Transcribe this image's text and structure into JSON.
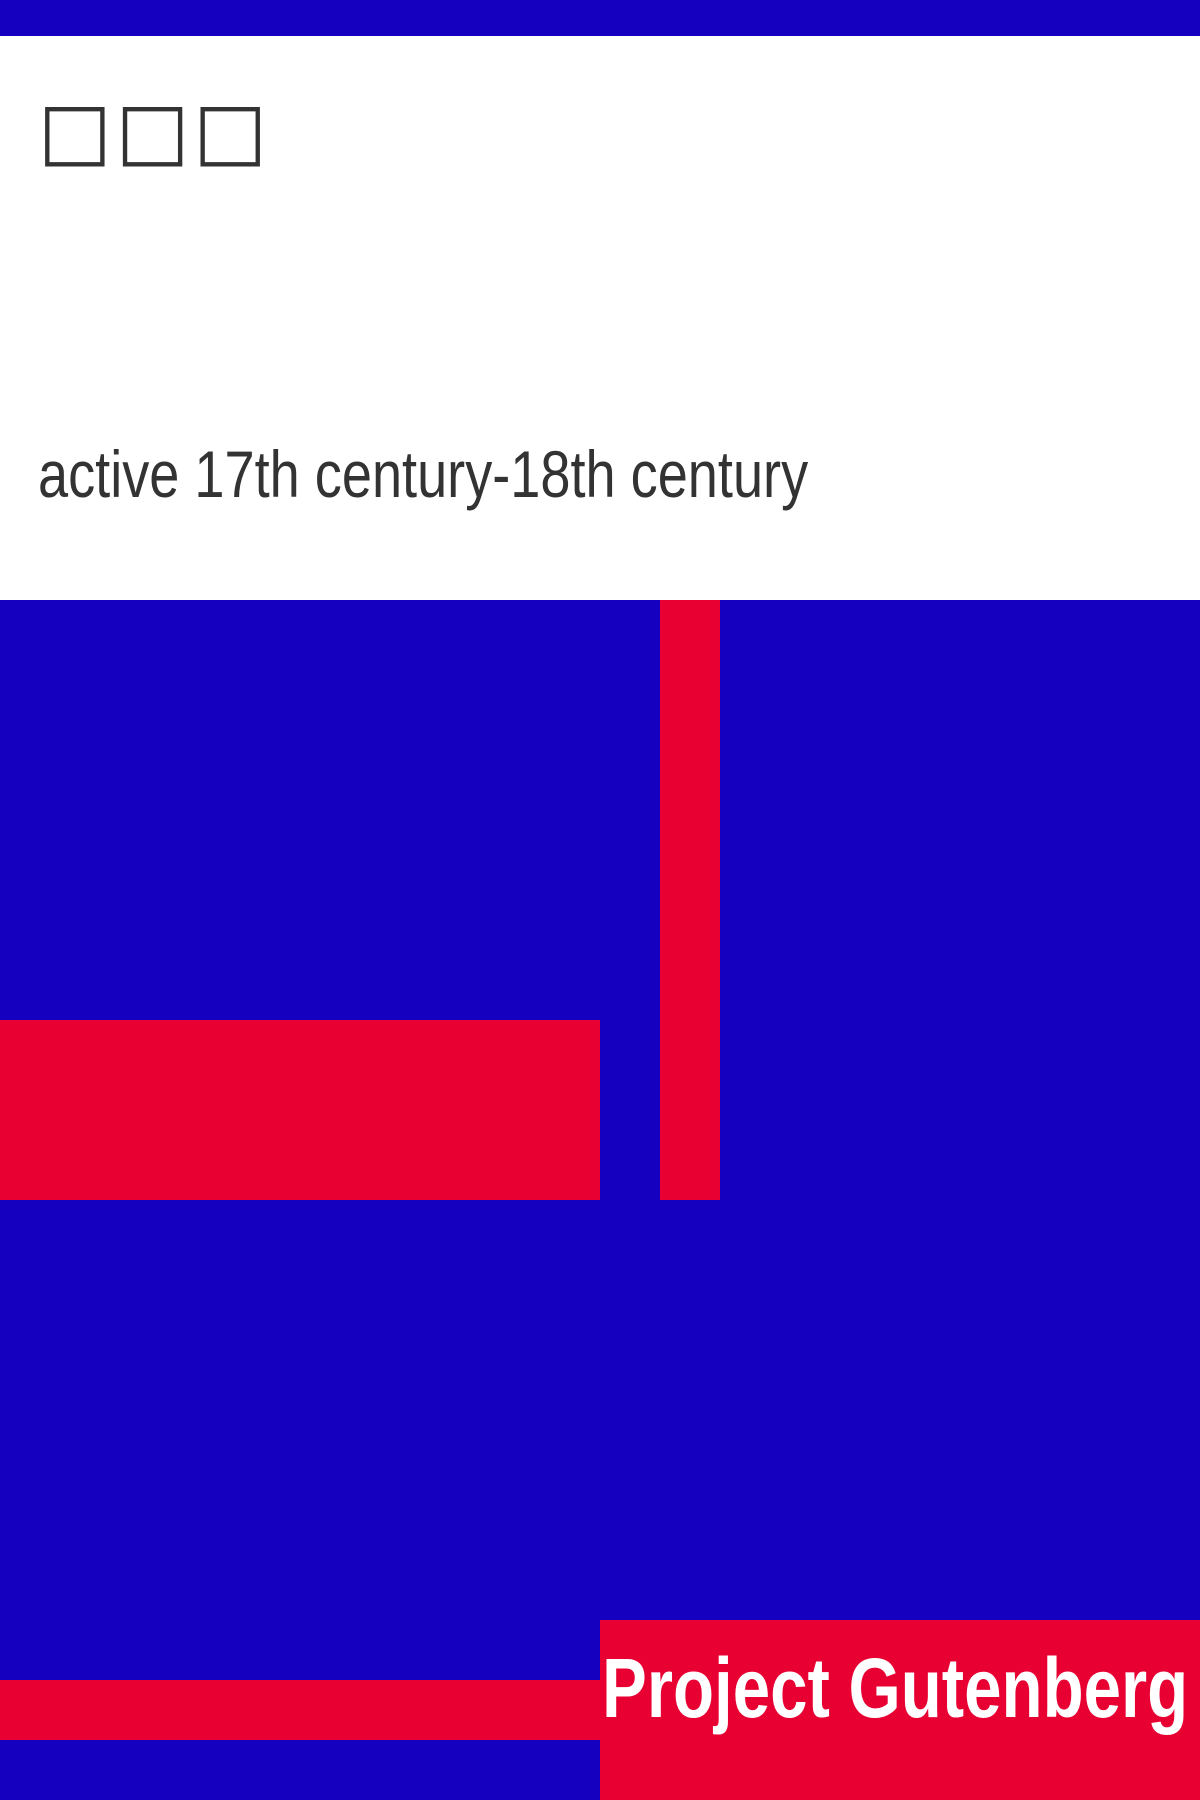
{
  "cover": {
    "title": "□□□",
    "author": "active 17th century-18th century",
    "publisher": "Project Gutenberg"
  },
  "colors": {
    "background": "#1500bf",
    "accent": "#e80033",
    "panel": "#ffffff",
    "text": "#333333",
    "publisher_text": "#ffffff"
  }
}
